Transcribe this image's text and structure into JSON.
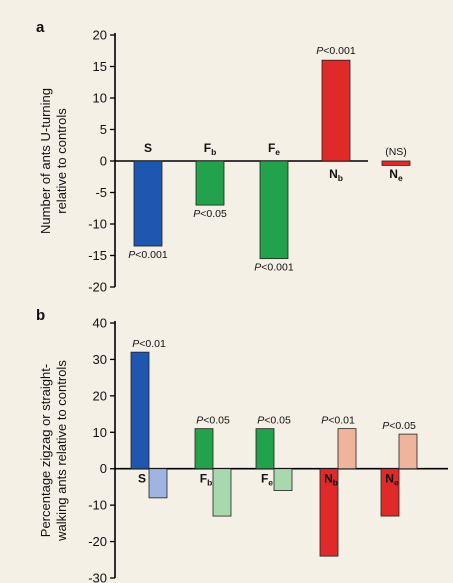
{
  "chart_data": [
    {
      "panel_label": "a",
      "type": "bar",
      "ylabel": [
        "Number of ants U-turning",
        "relative to controls"
      ],
      "ylim": [
        -20,
        20
      ],
      "yticks": [
        -20,
        -15,
        -10,
        -5,
        0,
        5,
        10,
        15,
        20
      ],
      "bars": [
        {
          "group": "S",
          "sub": "",
          "value": -13.5,
          "color": "#1f56b0",
          "pval": "P<0.001",
          "pval_pos": "below",
          "label_pos": "above"
        },
        {
          "group": "F",
          "sub": "b",
          "value": -7,
          "color": "#22a24a",
          "pval": "P<0.05",
          "pval_pos": "below",
          "label_pos": "above"
        },
        {
          "group": "F",
          "sub": "e",
          "value": -15.5,
          "color": "#22a24a",
          "pval": "P<0.001",
          "pval_pos": "below",
          "label_pos": "above"
        },
        {
          "group": "N",
          "sub": "b",
          "value": 16,
          "color": "#e02a2a",
          "pval": "P<0.001",
          "pval_pos": "above",
          "label_pos": "below"
        },
        {
          "group": "N",
          "sub": "e",
          "value": -0.7,
          "color": "#e02a2a",
          "pval": "(NS)",
          "pval_pos": "above",
          "label_pos": "below"
        }
      ]
    },
    {
      "panel_label": "b",
      "type": "bar",
      "ylabel": [
        "Percentage zigzag or straight-",
        "walking ants relative to controls"
      ],
      "ylim": [
        -30,
        40
      ],
      "yticks": [
        -30,
        -20,
        -10,
        0,
        10,
        20,
        30,
        40
      ],
      "groups": [
        {
          "group": "S",
          "sub": "",
          "pval": "P<0.01",
          "values": [
            32,
            -8
          ],
          "colors": [
            "#1f56b0",
            "#9fb4e0"
          ]
        },
        {
          "group": "F",
          "sub": "b",
          "pval": "P<0.05",
          "values": [
            11,
            -13
          ],
          "colors": [
            "#22a24a",
            "#a8d8ae"
          ]
        },
        {
          "group": "F",
          "sub": "e",
          "pval": "P<0.05",
          "values": [
            11,
            -6
          ],
          "colors": [
            "#22a24a",
            "#a8d8ae"
          ]
        },
        {
          "group": "N",
          "sub": "b",
          "pval": "P<0.01",
          "values": [
            -24,
            11
          ],
          "colors": [
            "#e02a2a",
            "#f0b49c"
          ]
        },
        {
          "group": "N",
          "sub": "e",
          "pval": "P<0.05",
          "values": [
            -13,
            9.5
          ],
          "colors": [
            "#e02a2a",
            "#f0b49c"
          ]
        }
      ]
    }
  ]
}
